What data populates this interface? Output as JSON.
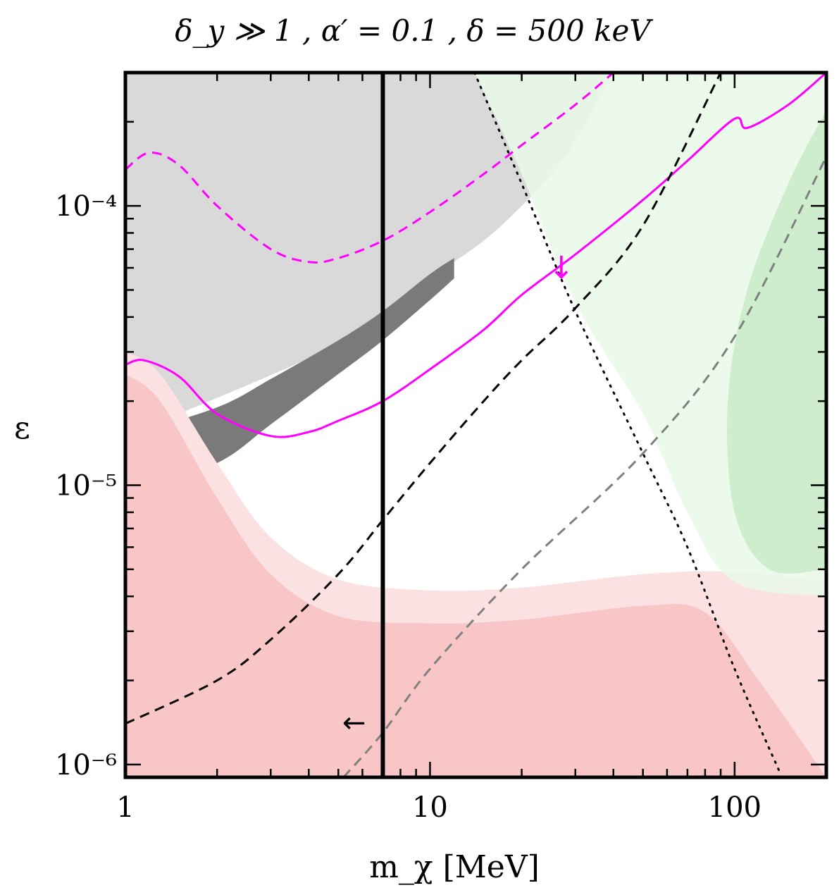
{
  "chart_data": {
    "type": "line",
    "title": "δ_y ≫ 1 ,  α′ = 0.1 ,  δ = 500 keV",
    "xlabel": "m_χ [MeV]",
    "ylabel": "ε",
    "xscale": "log",
    "yscale": "log",
    "xlim": [
      1,
      200
    ],
    "ylim": [
      9e-07,
      0.0003
    ],
    "x_ticks": [
      {
        "value": 1,
        "label": "1"
      },
      {
        "value": 10,
        "label": "10"
      },
      {
        "value": 100,
        "label": "100"
      }
    ],
    "y_ticks": [
      {
        "value": 1e-06,
        "label": "10⁻⁶"
      },
      {
        "value": 1e-05,
        "label": "10⁻⁵"
      },
      {
        "value": 0.0001,
        "label": "10⁻⁴"
      }
    ],
    "regions": [
      {
        "name": "gray-excluded-light",
        "color": "#d9d9d9",
        "x": [
          1,
          5,
          10,
          15,
          20,
          25,
          30,
          40,
          200,
          200,
          1
        ],
        "y": [
          1.5e-05,
          3.2e-05,
          5.5e-05,
          7.5e-05,
          0.0001,
          0.00013,
          0.00017,
          0.0003,
          0.0003,
          0.0003,
          0.0003
        ]
      },
      {
        "name": "gray-excluded-dark-band",
        "color": "#7a7a7a",
        "x": [
          1,
          2,
          3,
          5,
          7,
          10,
          12
        ],
        "y_low": [
          9e-06,
          1.2e-05,
          1.65e-05,
          2.5e-05,
          3.3e-05,
          4.6e-05,
          5.5e-05
        ],
        "y_high": [
          1.5e-05,
          1.9e-05,
          2.4e-05,
          3.3e-05,
          4.2e-05,
          5.7e-05,
          6.5e-05
        ]
      },
      {
        "name": "red-excluded-light",
        "color": "#fbe1e1",
        "x": [
          1,
          1.3,
          2,
          3,
          5,
          10,
          20,
          50,
          100,
          200
        ],
        "y": [
          3e-05,
          2.5e-05,
          1.2e-05,
          6.5e-06,
          4.6e-06,
          4.2e-06,
          4.3e-06,
          4.8e-06,
          4.9e-06,
          4.5e-06
        ]
      },
      {
        "name": "red-excluded",
        "color": "#f8c6c6",
        "x": [
          1,
          1.3,
          2,
          3,
          5,
          10,
          20,
          50,
          80,
          120,
          200
        ],
        "y": [
          2.5e-05,
          2e-05,
          9e-06,
          4.8e-06,
          3.4e-06,
          3.2e-06,
          3.3e-06,
          3.7e-06,
          3.5e-06,
          2e-06,
          9e-07
        ]
      },
      {
        "name": "green-excluded-light",
        "color": "#e7f9e8",
        "x": [
          14,
          20,
          30,
          50,
          70,
          100,
          200
        ],
        "y": [
          0.0003,
          0.00013,
          4.5e-05,
          1.8e-05,
          8e-06,
          4.5e-06,
          4e-06
        ]
      },
      {
        "name": "green-excluded",
        "color": "#c8eac8",
        "x": [
          200,
          150,
          110,
          95,
          100,
          130,
          200
        ],
        "y": [
          0.00022,
          0.00012,
          5e-05,
          2e-05,
          8e-06,
          5e-06,
          5e-06
        ]
      }
    ],
    "series": [
      {
        "name": "magenta-solid",
        "color": "#ff00ff",
        "style": "solid",
        "x": [
          1,
          1.15,
          1.5,
          2,
          3,
          4,
          5,
          7,
          10,
          15,
          20,
          30,
          50,
          70,
          100,
          110,
          150,
          200
        ],
        "y": [
          2.7e-05,
          2.8e-05,
          2.45e-05,
          1.8e-05,
          1.5e-05,
          1.55e-05,
          1.7e-05,
          2e-05,
          2.6e-05,
          3.6e-05,
          4.8e-05,
          6.7e-05,
          0.000105,
          0.000145,
          0.000205,
          0.00019,
          0.00023,
          0.0003
        ]
      },
      {
        "name": "magenta-dashed",
        "color": "#ff00ff",
        "style": "dashed",
        "x": [
          1,
          1.2,
          1.5,
          2,
          3,
          4,
          5,
          7,
          10,
          15,
          20,
          30,
          40
        ],
        "y": [
          0.000135,
          0.000155,
          0.00014,
          0.0001,
          7e-05,
          6.3e-05,
          6.5e-05,
          7.5e-05,
          9.5e-05,
          0.00013,
          0.000165,
          0.00023,
          0.0003
        ]
      },
      {
        "name": "black-dashed",
        "color": "#000000",
        "style": "dashed",
        "x": [
          1,
          2,
          3,
          5,
          7,
          10,
          15,
          20,
          30,
          50,
          90
        ],
        "y": [
          1.4e-06,
          2e-06,
          2.8e-06,
          4.8e-06,
          7.5e-06,
          1.2e-05,
          2e-05,
          2.8e-05,
          4.3e-05,
          8.5e-05,
          0.0003
        ]
      },
      {
        "name": "gray-dashed",
        "color": "#808080",
        "style": "dashed",
        "x": [
          5.2,
          7,
          10,
          20,
          50,
          100,
          200
        ],
        "y": [
          9e-07,
          1.3e-06,
          2.2e-06,
          5e-06,
          1.3e-05,
          3.4e-05,
          0.00015
        ]
      },
      {
        "name": "black-dotted",
        "color": "#000000",
        "style": "dotted",
        "x": [
          14,
          20,
          30,
          50,
          70,
          100,
          140
        ],
        "y": [
          0.0003,
          0.00012,
          4.2e-05,
          1.3e-05,
          6e-06,
          2.2e-06,
          9.5e-07
        ]
      },
      {
        "name": "black-vertical",
        "color": "#000000",
        "style": "solid-thick",
        "x": [
          7,
          7
        ],
        "y": [
          9e-07,
          0.0003
        ]
      }
    ],
    "annotations": [
      {
        "name": "arrow-left",
        "glyph": "←",
        "x": 7,
        "y": 1.4e-06,
        "direction": "left"
      },
      {
        "name": "arrow-down",
        "glyph": "↓",
        "x": 27,
        "y": 5.5e-05,
        "direction": "down"
      }
    ],
    "grid": false
  }
}
